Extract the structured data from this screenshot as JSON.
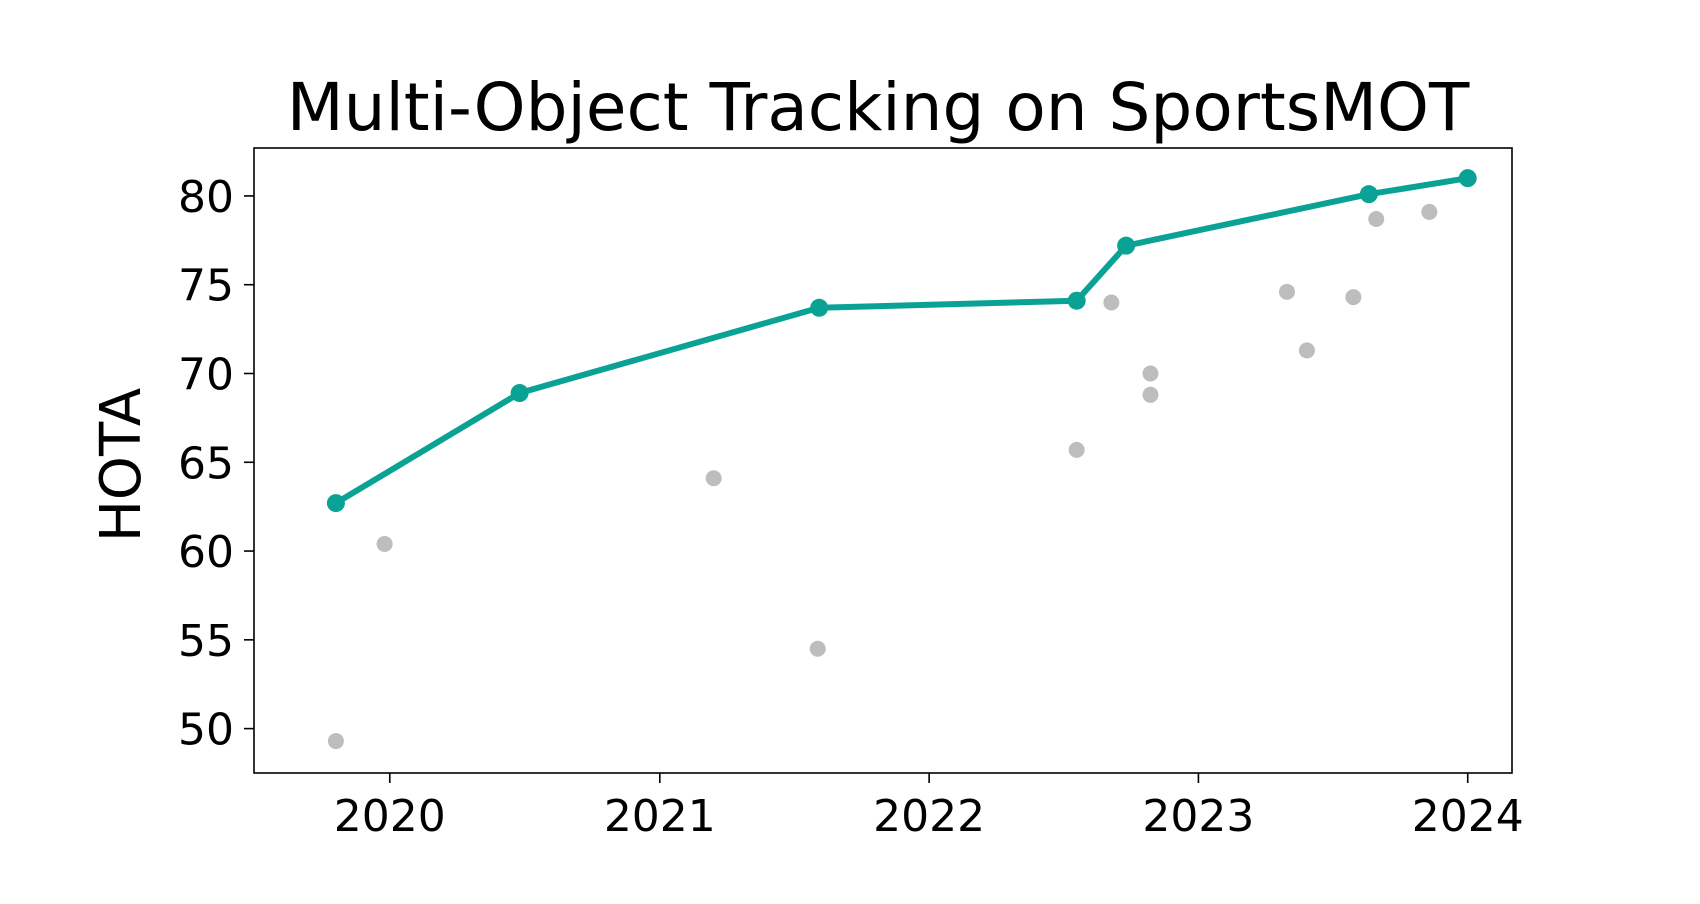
{
  "chart_data": {
    "type": "scatter",
    "title": "Multi-Object Tracking on SportsMOT",
    "xlabel": "",
    "ylabel": "HOTA",
    "xlim": [
      "2019-07-01",
      "2024-03-01"
    ],
    "ylim": [
      47.5,
      82.7
    ],
    "x_ticks": [
      {
        "date": "2020-01-01",
        "label": "2020"
      },
      {
        "date": "2021-01-01",
        "label": "2021"
      },
      {
        "date": "2022-01-01",
        "label": "2022"
      },
      {
        "date": "2023-01-01",
        "label": "2023"
      },
      {
        "date": "2024-01-01",
        "label": "2024"
      }
    ],
    "y_ticks": [
      50,
      55,
      60,
      65,
      70,
      75,
      80
    ],
    "grid": false,
    "colors": {
      "frontier": "#0aa294",
      "others": "#bdbdbd"
    },
    "frontier": [
      {
        "date": "2019-10-20",
        "y": 62.7
      },
      {
        "date": "2020-06-25",
        "y": 68.9
      },
      {
        "date": "2021-08-05",
        "y": 73.7
      },
      {
        "date": "2022-07-20",
        "y": 74.1
      },
      {
        "date": "2022-09-25",
        "y": 77.2
      },
      {
        "date": "2023-08-20",
        "y": 80.1
      },
      {
        "date": "2024-01-01",
        "y": 81.0
      }
    ],
    "others": [
      {
        "date": "2019-10-20",
        "y": 49.3
      },
      {
        "date": "2019-12-25",
        "y": 60.4
      },
      {
        "date": "2021-03-15",
        "y": 64.1
      },
      {
        "date": "2021-08-03",
        "y": 54.5
      },
      {
        "date": "2022-07-20",
        "y": 65.7
      },
      {
        "date": "2022-09-05",
        "y": 74.0
      },
      {
        "date": "2022-10-28",
        "y": 70.0
      },
      {
        "date": "2022-10-28",
        "y": 68.8
      },
      {
        "date": "2023-05-01",
        "y": 74.6
      },
      {
        "date": "2023-05-28",
        "y": 71.3
      },
      {
        "date": "2023-07-30",
        "y": 74.3
      },
      {
        "date": "2023-08-30",
        "y": 78.7
      },
      {
        "date": "2023-11-10",
        "y": 79.1
      }
    ]
  }
}
